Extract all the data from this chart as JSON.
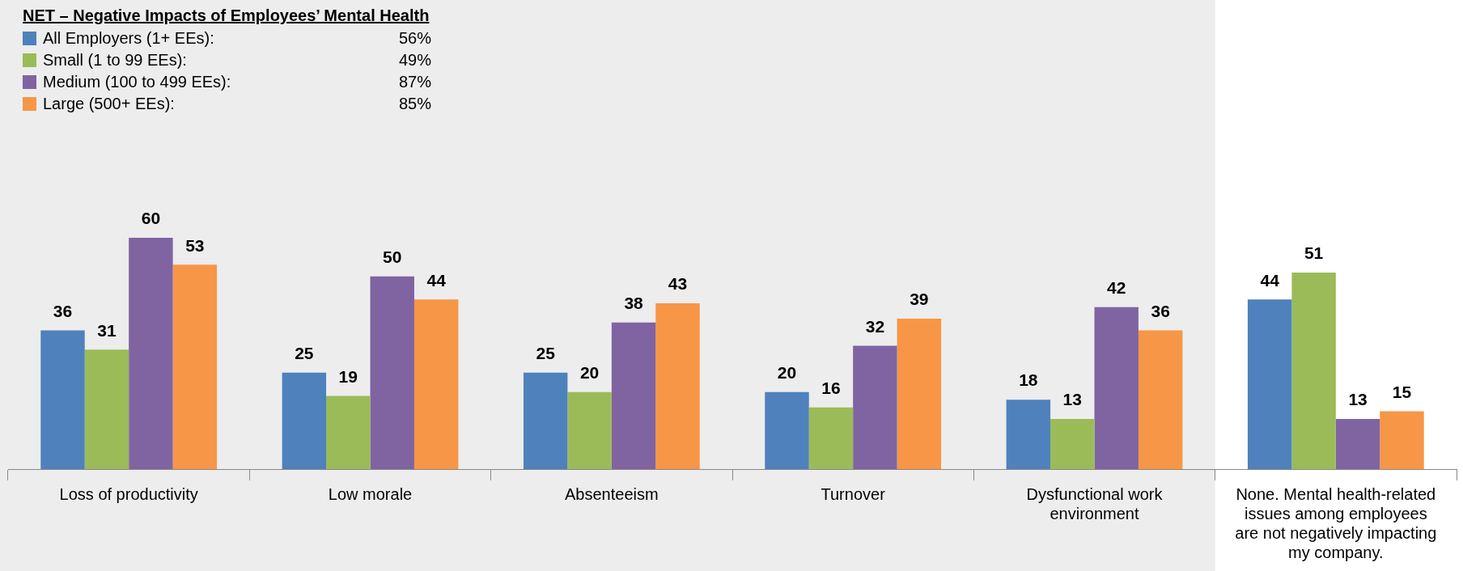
{
  "chart_data": {
    "type": "bar",
    "legend_title": "NET – Negative Impacts of Employees’ Mental Health",
    "categories": [
      "Loss of productivity",
      "Low morale",
      "Absenteeism",
      "Turnover",
      "Dysfunctional work environment",
      "None. Mental health-related issues among employees are not negatively impacting my company."
    ],
    "series": [
      {
        "name": "All Employers (1+ EEs):",
        "color": "#4f81bd",
        "values": [
          36,
          25,
          25,
          20,
          18,
          44
        ]
      },
      {
        "name": "Small (1 to 99 EEs):",
        "color": "#9bbb59",
        "values": [
          31,
          19,
          20,
          16,
          13,
          51
        ]
      },
      {
        "name": "Medium (100 to 499 EEs):",
        "color": "#8064a2",
        "values": [
          60,
          50,
          38,
          32,
          42,
          13
        ]
      },
      {
        "name": "Large (500+ EEs):",
        "color": "#f79646",
        "values": [
          53,
          44,
          43,
          39,
          36,
          15
        ]
      }
    ],
    "annotations": [
      "56%",
      "49%",
      "87%",
      "85%"
    ],
    "bands": [
      {
        "axis": "x",
        "from": "Loss of productivity",
        "to": "Dysfunctional work environment",
        "color": "#ededed"
      }
    ],
    "data_labels": true,
    "legend": "top left",
    "grid": false
  }
}
